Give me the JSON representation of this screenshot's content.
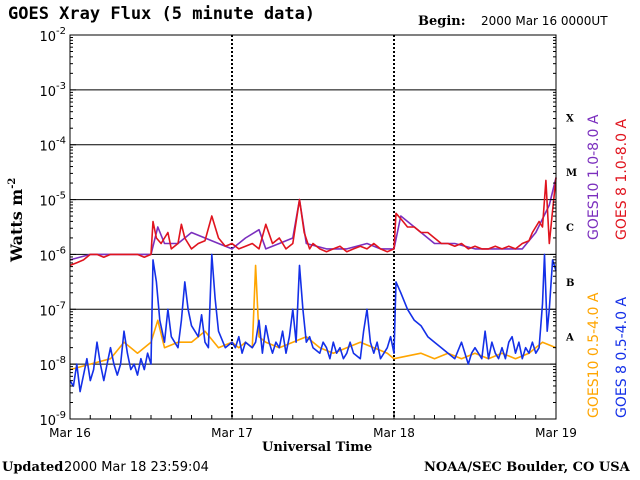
{
  "header": {
    "title": "GOES Xray Flux (5 minute data)",
    "begin_label": "Begin:",
    "begin_value": "2000 Mar 16 0000UT"
  },
  "footer": {
    "updated_label": "Updated",
    "updated_value": "2000 Mar 18 23:59:04",
    "credit": "NOAA/SEC Boulder, CO USA"
  },
  "chart_data": {
    "type": "line",
    "title": "GOES Xray Flux (5 minute data)",
    "xlabel": "Universal Time",
    "ylabel": "Watts m",
    "ylabel_sup": "-2",
    "yscale": "log",
    "ylim": [
      1e-09,
      0.01
    ],
    "xlim": [
      0,
      72
    ],
    "x_unit": "hours since 2000 Mar 16 00:00 UT",
    "x_ticks": [
      {
        "x": 0,
        "label": "Mar 16"
      },
      {
        "x": 24,
        "label": "Mar 17"
      },
      {
        "x": 48,
        "label": "Mar 18"
      },
      {
        "x": 72,
        "label": "Mar 19"
      }
    ],
    "y_ticks": [
      {
        "exp": -2,
        "label": "10",
        "sup": "-2"
      },
      {
        "exp": -3,
        "label": "10",
        "sup": "-3"
      },
      {
        "exp": -4,
        "label": "10",
        "sup": "-4"
      },
      {
        "exp": -5,
        "label": "10",
        "sup": "-5"
      },
      {
        "exp": -6,
        "label": "10",
        "sup": "-6"
      },
      {
        "exp": -7,
        "label": "10",
        "sup": "-7"
      },
      {
        "exp": -8,
        "label": "10",
        "sup": "-8"
      },
      {
        "exp": -9,
        "label": "10",
        "sup": "-9"
      }
    ],
    "grid_lines": [
      -3,
      -4,
      -5,
      -6,
      -7,
      -8
    ],
    "flare_classes": [
      {
        "label": "X",
        "exp": -3.5
      },
      {
        "label": "M",
        "exp": -4.5
      },
      {
        "label": "C",
        "exp": -5.5
      },
      {
        "label": "B",
        "exp": -6.5
      },
      {
        "label": "A",
        "exp": -7.5
      }
    ],
    "series": [
      {
        "name": "GOES10 1.0-8.0 A",
        "color": "#7b2fbe",
        "points": [
          [
            0,
            -6.1
          ],
          [
            3,
            -6.0
          ],
          [
            6,
            -6.0
          ],
          [
            10,
            -6.0
          ],
          [
            12,
            -6.0
          ],
          [
            13,
            -5.5
          ],
          [
            14,
            -5.8
          ],
          [
            16,
            -5.8
          ],
          [
            18,
            -5.6
          ],
          [
            20,
            -5.7
          ],
          [
            22,
            -5.8
          ],
          [
            24,
            -5.9
          ],
          [
            26,
            -5.7
          ],
          [
            28,
            -5.55
          ],
          [
            29,
            -5.9
          ],
          [
            31,
            -5.8
          ],
          [
            33,
            -5.7
          ],
          [
            34,
            -5.0
          ],
          [
            35,
            -5.8
          ],
          [
            38,
            -5.9
          ],
          [
            41,
            -5.9
          ],
          [
            44,
            -5.8
          ],
          [
            46,
            -5.9
          ],
          [
            48,
            -5.9
          ],
          [
            49,
            -5.3
          ],
          [
            51,
            -5.5
          ],
          [
            54,
            -5.8
          ],
          [
            57,
            -5.8
          ],
          [
            60,
            -5.9
          ],
          [
            63,
            -5.9
          ],
          [
            65,
            -5.9
          ],
          [
            67,
            -5.9
          ],
          [
            69,
            -5.6
          ],
          [
            71,
            -5.1
          ],
          [
            72,
            -4.6
          ]
        ]
      },
      {
        "name": "GOES 8 1.0-8.0 A",
        "color": "#e0141e",
        "points": [
          [
            0,
            -6.2
          ],
          [
            1,
            -6.15
          ],
          [
            2,
            -6.1
          ],
          [
            3,
            -6.0
          ],
          [
            4,
            -6.0
          ],
          [
            5,
            -6.05
          ],
          [
            6,
            -6.0
          ],
          [
            7,
            -6.0
          ],
          [
            8,
            -6.0
          ],
          [
            9,
            -6.0
          ],
          [
            10,
            -6.0
          ],
          [
            11,
            -6.05
          ],
          [
            12,
            -6.0
          ],
          [
            12.3,
            -5.4
          ],
          [
            12.8,
            -5.7
          ],
          [
            13.5,
            -5.8
          ],
          [
            14.5,
            -5.6
          ],
          [
            15,
            -5.9
          ],
          [
            16,
            -5.8
          ],
          [
            16.5,
            -5.45
          ],
          [
            17,
            -5.7
          ],
          [
            18,
            -5.9
          ],
          [
            19,
            -5.8
          ],
          [
            20,
            -5.75
          ],
          [
            21,
            -5.3
          ],
          [
            22,
            -5.7
          ],
          [
            23,
            -5.85
          ],
          [
            24,
            -5.8
          ],
          [
            25,
            -5.9
          ],
          [
            26,
            -5.85
          ],
          [
            27,
            -5.8
          ],
          [
            28,
            -5.9
          ],
          [
            29,
            -5.45
          ],
          [
            30,
            -5.8
          ],
          [
            31,
            -5.7
          ],
          [
            32,
            -5.9
          ],
          [
            33,
            -5.8
          ],
          [
            34,
            -5.0
          ],
          [
            34.7,
            -5.6
          ],
          [
            35.5,
            -5.9
          ],
          [
            36,
            -5.8
          ],
          [
            37,
            -5.9
          ],
          [
            38,
            -5.95
          ],
          [
            39,
            -5.9
          ],
          [
            40,
            -5.85
          ],
          [
            41,
            -5.95
          ],
          [
            42,
            -5.9
          ],
          [
            43,
            -5.85
          ],
          [
            44,
            -5.9
          ],
          [
            45,
            -5.8
          ],
          [
            46,
            -5.9
          ],
          [
            47,
            -5.95
          ],
          [
            48,
            -5.9
          ],
          [
            48.3,
            -5.25
          ],
          [
            49,
            -5.35
          ],
          [
            50,
            -5.5
          ],
          [
            51,
            -5.5
          ],
          [
            52,
            -5.6
          ],
          [
            53,
            -5.6
          ],
          [
            54,
            -5.7
          ],
          [
            55,
            -5.8
          ],
          [
            56,
            -5.8
          ],
          [
            57,
            -5.85
          ],
          [
            58,
            -5.8
          ],
          [
            59,
            -5.9
          ],
          [
            60,
            -5.85
          ],
          [
            61,
            -5.9
          ],
          [
            62,
            -5.9
          ],
          [
            63,
            -5.85
          ],
          [
            64,
            -5.9
          ],
          [
            65,
            -5.85
          ],
          [
            66,
            -5.9
          ],
          [
            67,
            -5.8
          ],
          [
            68,
            -5.75
          ],
          [
            68.5,
            -5.6
          ],
          [
            69.5,
            -5.4
          ],
          [
            70,
            -5.5
          ],
          [
            70.5,
            -4.65
          ],
          [
            71,
            -5.8
          ],
          [
            71.5,
            -5.2
          ],
          [
            72,
            -4.6
          ]
        ]
      },
      {
        "name": "GOES10 0.5-4.0 A",
        "color": "#ffa500",
        "points": [
          [
            0,
            -8.1
          ],
          [
            3,
            -8.0
          ],
          [
            6,
            -7.9
          ],
          [
            8,
            -7.6
          ],
          [
            10,
            -7.8
          ],
          [
            12,
            -7.6
          ],
          [
            13,
            -7.2
          ],
          [
            14,
            -7.7
          ],
          [
            16,
            -7.6
          ],
          [
            18,
            -7.6
          ],
          [
            20,
            -7.4
          ],
          [
            22,
            -7.7
          ],
          [
            24,
            -7.6
          ],
          [
            25,
            -7.7
          ],
          [
            26,
            -7.6
          ],
          [
            27,
            -7.7
          ],
          [
            27.5,
            -6.2
          ],
          [
            28,
            -7.5
          ],
          [
            29,
            -7.6
          ],
          [
            31,
            -7.7
          ],
          [
            33,
            -7.6
          ],
          [
            35,
            -7.5
          ],
          [
            37,
            -7.7
          ],
          [
            39,
            -7.8
          ],
          [
            41,
            -7.7
          ],
          [
            43,
            -7.6
          ],
          [
            45,
            -7.7
          ],
          [
            47,
            -7.8
          ],
          [
            48,
            -7.9
          ],
          [
            52,
            -7.8
          ],
          [
            54,
            -7.9
          ],
          [
            56,
            -7.8
          ],
          [
            58,
            -7.9
          ],
          [
            60,
            -7.8
          ],
          [
            62,
            -7.9
          ],
          [
            64,
            -7.8
          ],
          [
            66,
            -7.9
          ],
          [
            68,
            -7.8
          ],
          [
            70,
            -7.6
          ],
          [
            72,
            -7.7
          ]
        ]
      },
      {
        "name": "GOES 8 0.5-4.0 A",
        "color": "#1430e8",
        "points": [
          [
            0,
            -8.3
          ],
          [
            0.5,
            -8.4
          ],
          [
            1,
            -8.0
          ],
          [
            1.5,
            -8.5
          ],
          [
            2,
            -8.2
          ],
          [
            2.5,
            -7.9
          ],
          [
            3,
            -8.3
          ],
          [
            3.5,
            -8.1
          ],
          [
            4,
            -7.6
          ],
          [
            4.5,
            -8.0
          ],
          [
            5,
            -8.3
          ],
          [
            5.5,
            -8.0
          ],
          [
            6,
            -7.7
          ],
          [
            6.5,
            -8.0
          ],
          [
            7,
            -8.2
          ],
          [
            7.5,
            -8.0
          ],
          [
            8,
            -7.4
          ],
          [
            8.5,
            -7.8
          ],
          [
            9,
            -8.1
          ],
          [
            9.5,
            -8.0
          ],
          [
            10,
            -8.2
          ],
          [
            10.5,
            -7.9
          ],
          [
            11,
            -8.1
          ],
          [
            11.5,
            -7.8
          ],
          [
            12,
            -8.0
          ],
          [
            12.3,
            -6.1
          ],
          [
            12.8,
            -6.5
          ],
          [
            13.3,
            -7.2
          ],
          [
            14,
            -7.6
          ],
          [
            14.5,
            -7.0
          ],
          [
            15,
            -7.5
          ],
          [
            16,
            -7.7
          ],
          [
            16.5,
            -7.2
          ],
          [
            17,
            -6.5
          ],
          [
            17.5,
            -7.0
          ],
          [
            18,
            -7.3
          ],
          [
            19,
            -7.5
          ],
          [
            19.5,
            -7.1
          ],
          [
            20,
            -7.6
          ],
          [
            20.5,
            -7.7
          ],
          [
            21,
            -6.0
          ],
          [
            21.5,
            -6.8
          ],
          [
            22,
            -7.4
          ],
          [
            23,
            -7.7
          ],
          [
            24,
            -7.6
          ],
          [
            24.5,
            -7.7
          ],
          [
            25,
            -7.5
          ],
          [
            25.5,
            -7.8
          ],
          [
            26,
            -7.6
          ],
          [
            27,
            -7.7
          ],
          [
            27.5,
            -7.6
          ],
          [
            28,
            -7.2
          ],
          [
            28.5,
            -7.8
          ],
          [
            29,
            -7.3
          ],
          [
            29.5,
            -7.6
          ],
          [
            30,
            -7.8
          ],
          [
            30.5,
            -7.6
          ],
          [
            31,
            -7.7
          ],
          [
            31.5,
            -7.4
          ],
          [
            32,
            -7.8
          ],
          [
            32.5,
            -7.5
          ],
          [
            33,
            -7.0
          ],
          [
            33.5,
            -7.6
          ],
          [
            34,
            -6.2
          ],
          [
            34.5,
            -7.0
          ],
          [
            35,
            -7.6
          ],
          [
            35.5,
            -7.5
          ],
          [
            36,
            -7.7
          ],
          [
            37,
            -7.8
          ],
          [
            37.5,
            -7.6
          ],
          [
            38,
            -7.7
          ],
          [
            38.5,
            -7.9
          ],
          [
            39,
            -7.6
          ],
          [
            39.5,
            -7.8
          ],
          [
            40,
            -7.7
          ],
          [
            40.5,
            -7.9
          ],
          [
            41,
            -7.8
          ],
          [
            41.5,
            -7.6
          ],
          [
            42,
            -7.8
          ],
          [
            43,
            -7.9
          ],
          [
            43.5,
            -7.4
          ],
          [
            44,
            -7.0
          ],
          [
            44.5,
            -7.6
          ],
          [
            45,
            -7.8
          ],
          [
            45.5,
            -7.6
          ],
          [
            46,
            -7.9
          ],
          [
            47,
            -7.7
          ],
          [
            47.5,
            -7.5
          ],
          [
            48,
            -7.8
          ],
          [
            48.3,
            -6.5
          ],
          [
            49,
            -6.7
          ],
          [
            50,
            -7.0
          ],
          [
            51,
            -7.2
          ],
          [
            52,
            -7.3
          ],
          [
            53,
            -7.5
          ],
          [
            54,
            -7.6
          ],
          [
            55,
            -7.7
          ],
          [
            56,
            -7.8
          ],
          [
            57,
            -7.9
          ],
          [
            58,
            -7.6
          ],
          [
            59,
            -8.0
          ],
          [
            59.5,
            -7.8
          ],
          [
            60,
            -7.7
          ],
          [
            61,
            -7.9
          ],
          [
            61.5,
            -7.4
          ],
          [
            62,
            -7.9
          ],
          [
            62.5,
            -7.6
          ],
          [
            63,
            -7.8
          ],
          [
            63.5,
            -7.9
          ],
          [
            64,
            -7.7
          ],
          [
            64.5,
            -7.9
          ],
          [
            65,
            -7.6
          ],
          [
            65.5,
            -7.5
          ],
          [
            66,
            -7.8
          ],
          [
            66.5,
            -7.6
          ],
          [
            67,
            -7.9
          ],
          [
            67.5,
            -7.7
          ],
          [
            68,
            -7.8
          ],
          [
            68.5,
            -7.6
          ],
          [
            69,
            -7.8
          ],
          [
            69.5,
            -7.7
          ],
          [
            70,
            -6.9
          ],
          [
            70.3,
            -6.0
          ],
          [
            70.7,
            -7.4
          ],
          [
            71,
            -7.0
          ],
          [
            71.5,
            -6.1
          ],
          [
            72,
            -6.3
          ]
        ]
      }
    ],
    "legend_placement": "right, vertical"
  }
}
